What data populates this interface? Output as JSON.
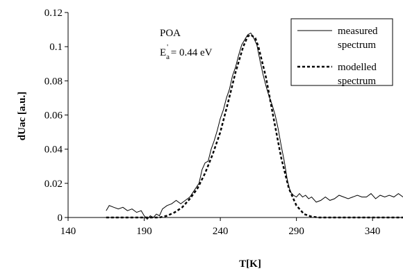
{
  "chart_data": {
    "type": "line",
    "xlabel": "T[K]",
    "ylabel": "dUac [a.u.]",
    "xlim": [
      140,
      360
    ],
    "ylim": [
      0,
      0.12
    ],
    "xticks": [
      "140",
      "190",
      "240",
      "290",
      "340"
    ],
    "yticks": [
      "0",
      "0.02",
      "0.04",
      "0.06",
      "0.08",
      "0.1",
      "0.12"
    ],
    "xtick_values": [
      140,
      190,
      240,
      290,
      340
    ],
    "ytick_values": [
      0,
      0.02,
      0.04,
      0.06,
      0.08,
      0.1,
      0.12
    ],
    "grid": false,
    "legend_placement": "top-right",
    "annotations": {
      "sample": "POA",
      "energy_main": "E",
      "energy_sub": "a",
      "energy_sup": "'",
      "energy_value": " = 0.44 eV"
    },
    "series": [
      {
        "name_line1": "measured",
        "name_line2": "spectrum",
        "style": "solid",
        "x": [
          165,
          167,
          170,
          173,
          176,
          179,
          182,
          185,
          188,
          190,
          192,
          194,
          196,
          198,
          200,
          202,
          205,
          208,
          211,
          214,
          217,
          220,
          223,
          226,
          228,
          230,
          232,
          234,
          236,
          238,
          240,
          242,
          244,
          246,
          248,
          250,
          252,
          254,
          256,
          258,
          260,
          262,
          264,
          266,
          268,
          270,
          272,
          274,
          276,
          278,
          280,
          282,
          284,
          286,
          288,
          290,
          292,
          294,
          296,
          298,
          300,
          303,
          306,
          309,
          312,
          315,
          318,
          321,
          324,
          327,
          330,
          333,
          336,
          339,
          342,
          345,
          348,
          351,
          354,
          357,
          360
        ],
        "y": [
          0.004,
          0.007,
          0.006,
          0.005,
          0.006,
          0.004,
          0.005,
          0.003,
          0.004,
          0.001,
          -0.001,
          0.001,
          0,
          0.002,
          0.001,
          0.005,
          0.007,
          0.008,
          0.01,
          0.008,
          0.01,
          0.012,
          0.016,
          0.02,
          0.028,
          0.032,
          0.033,
          0.04,
          0.045,
          0.051,
          0.058,
          0.063,
          0.07,
          0.075,
          0.083,
          0.088,
          0.095,
          0.101,
          0.104,
          0.107,
          0.108,
          0.105,
          0.101,
          0.092,
          0.084,
          0.077,
          0.071,
          0.066,
          0.06,
          0.052,
          0.042,
          0.033,
          0.022,
          0.015,
          0.013,
          0.012,
          0.014,
          0.012,
          0.013,
          0.011,
          0.012,
          0.009,
          0.01,
          0.012,
          0.01,
          0.011,
          0.013,
          0.012,
          0.011,
          0.012,
          0.013,
          0.012,
          0.012,
          0.014,
          0.011,
          0.013,
          0.012,
          0.013,
          0.012,
          0.014,
          0.012
        ]
      },
      {
        "name_line1": "modelled",
        "name_line2": "spectrum",
        "style": "dashed",
        "x": [
          165,
          200,
          205,
          210,
          215,
          220,
          225,
          230,
          235,
          240,
          245,
          250,
          255,
          258,
          260,
          263,
          265,
          270,
          275,
          280,
          285,
          290,
          295,
          300,
          305,
          310,
          360
        ],
        "y": [
          0,
          0,
          0.001,
          0.003,
          0.006,
          0.011,
          0.017,
          0.026,
          0.037,
          0.05,
          0.067,
          0.085,
          0.1,
          0.106,
          0.107,
          0.105,
          0.1,
          0.082,
          0.058,
          0.035,
          0.017,
          0.007,
          0.002,
          0.0005,
          0,
          0,
          0
        ]
      }
    ]
  }
}
